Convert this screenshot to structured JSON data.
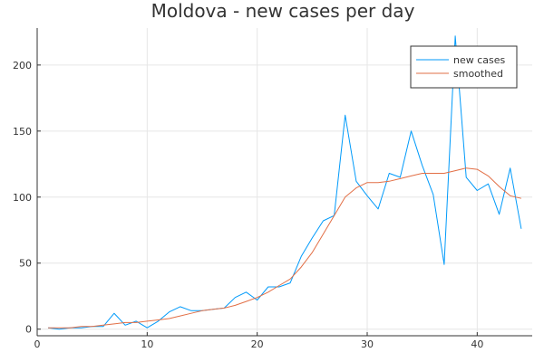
{
  "chart_data": {
    "type": "line",
    "title": "Moldova - new cases per day",
    "xlabel": "",
    "ylabel": "",
    "xlim": [
      0,
      45
    ],
    "ylim": [
      -5,
      228
    ],
    "xticks": [
      0,
      10,
      20,
      30,
      40
    ],
    "yticks": [
      0,
      50,
      100,
      150,
      200
    ],
    "grid": true,
    "legend_position": "top-right",
    "x": [
      1,
      2,
      3,
      4,
      5,
      6,
      7,
      8,
      9,
      10,
      11,
      12,
      13,
      14,
      15,
      16,
      17,
      18,
      19,
      20,
      21,
      22,
      23,
      24,
      25,
      26,
      27,
      28,
      29,
      30,
      31,
      32,
      33,
      34,
      35,
      36,
      37,
      38,
      39,
      40,
      41,
      42,
      43,
      44
    ],
    "series": [
      {
        "name": "new cases",
        "color": "#009AFA",
        "values": [
          1,
          0,
          1,
          1,
          2,
          2,
          12,
          3,
          6,
          1,
          6,
          13,
          17,
          14,
          14,
          15,
          16,
          24,
          28,
          22,
          32,
          32,
          35,
          55,
          69,
          82,
          86,
          162,
          112,
          101,
          91,
          118,
          115,
          150,
          124,
          102,
          49,
          222,
          115,
          105,
          110,
          87,
          122,
          76
        ]
      },
      {
        "name": "smoothed",
        "color": "#E26F46",
        "values": [
          1,
          1,
          1,
          2,
          2,
          3,
          4,
          5,
          5,
          6,
          7,
          8,
          10,
          12,
          14,
          15,
          16,
          18,
          21,
          24,
          28,
          33,
          38,
          47,
          58,
          72,
          86,
          100,
          107,
          111,
          111,
          112,
          114,
          116,
          118,
          118,
          118,
          120,
          122,
          121,
          116,
          108,
          101,
          99
        ]
      }
    ]
  }
}
